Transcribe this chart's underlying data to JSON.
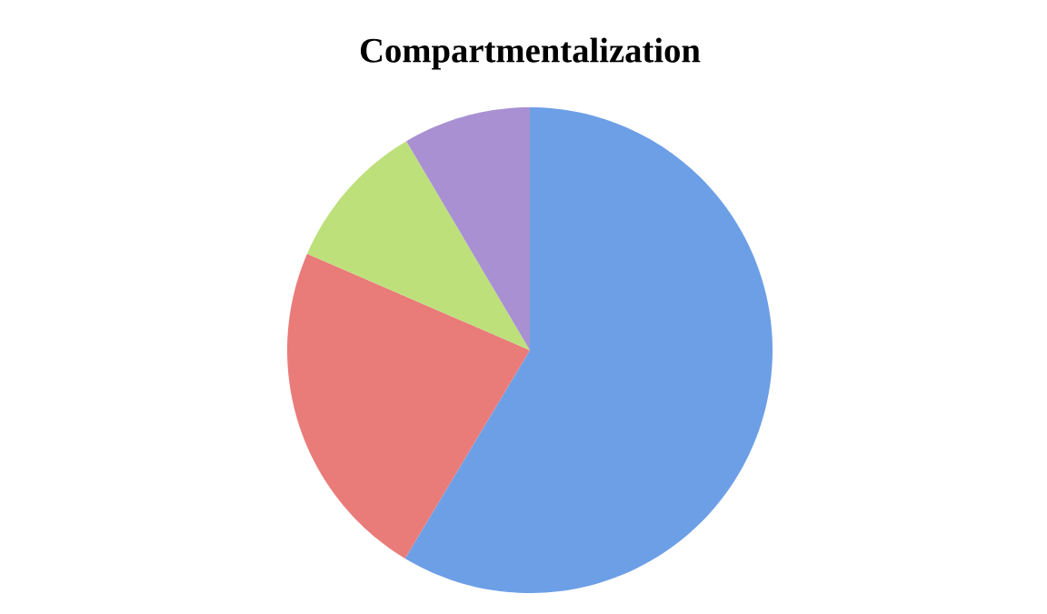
{
  "chart_data": {
    "type": "pie",
    "title": "Compartmentalization",
    "categories": [
      null,
      null,
      null,
      null
    ],
    "values": [
      58.6,
      22.9,
      10.0,
      8.5
    ],
    "colors": [
      "#6d9fe6",
      "#e97b79",
      "#bde07b",
      "#a890d2"
    ]
  }
}
